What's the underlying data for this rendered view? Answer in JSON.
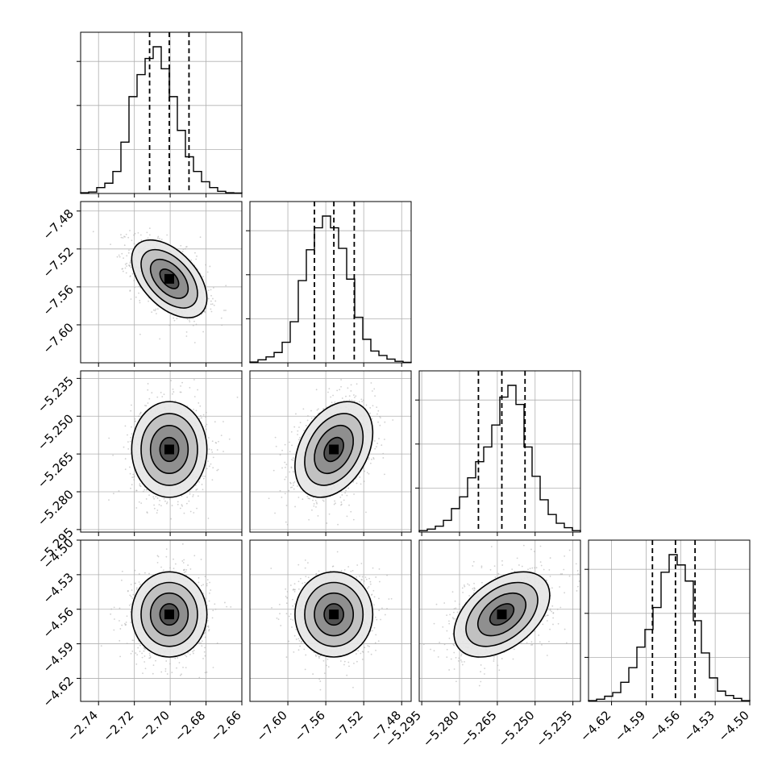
{
  "chart_data": {
    "type": "corner",
    "n_params": 4,
    "params": [
      {
        "range": [
          -2.75,
          -2.66
        ],
        "ticks": [
          -2.74,
          -2.72,
          -2.7,
          -2.68,
          -2.66
        ],
        "tick_labels": [
          "−2.74",
          "−2.72",
          "−2.70",
          "−2.68",
          "−2.66"
        ],
        "quantiles": [
          -2.7115,
          -2.7005,
          -2.6895
        ],
        "hist": [
          0.005,
          0.01,
          0.04,
          0.07,
          0.15,
          0.35,
          0.66,
          0.81,
          0.92,
          1.0,
          0.85,
          0.66,
          0.43,
          0.25,
          0.15,
          0.08,
          0.04,
          0.015,
          0.005,
          0.003
        ],
        "hist_yticks": [
          0.3,
          0.6,
          0.9
        ]
      },
      {
        "range": [
          -7.64,
          -7.47
        ],
        "ticks": [
          -7.6,
          -7.56,
          -7.52,
          -7.48
        ],
        "tick_labels": [
          "−7.60",
          "−7.56",
          "−7.52",
          "−7.48"
        ],
        "quantiles": [
          -7.572,
          -7.5515,
          -7.53
        ],
        "hist": [
          0.005,
          0.02,
          0.04,
          0.07,
          0.14,
          0.28,
          0.56,
          0.77,
          0.92,
          1.0,
          0.92,
          0.78,
          0.57,
          0.31,
          0.16,
          0.08,
          0.05,
          0.025,
          0.01,
          0.003
        ],
        "hist_yticks": [
          0.3,
          0.6,
          0.9
        ]
      },
      {
        "range": [
          -5.296,
          -5.232
        ],
        "ticks": [
          -5.295,
          -5.28,
          -5.265,
          -5.25,
          -5.235
        ],
        "tick_labels": [
          "−5.295",
          "−5.280",
          "−5.265",
          "−5.250",
          "−5.235"
        ],
        "quantiles": [
          -5.2725,
          -5.2632,
          -5.254
        ],
        "hist": [
          0.01,
          0.02,
          0.04,
          0.08,
          0.16,
          0.24,
          0.37,
          0.48,
          0.58,
          0.73,
          0.92,
          1.0,
          0.87,
          0.58,
          0.38,
          0.22,
          0.12,
          0.06,
          0.03,
          0.01
        ],
        "hist_yticks": [
          0.3,
          0.6,
          0.9
        ]
      },
      {
        "range": [
          -4.64,
          -4.5
        ],
        "ticks": [
          -4.62,
          -4.59,
          -4.56,
          -4.53,
          -4.5
        ],
        "tick_labels": [
          "−4.62",
          "−4.59",
          "−4.56",
          "−4.53",
          "−4.50"
        ],
        "quantiles": [
          -4.5845,
          -4.5645,
          -4.5475
        ],
        "hist": [
          0.005,
          0.015,
          0.035,
          0.06,
          0.13,
          0.23,
          0.37,
          0.49,
          0.64,
          0.88,
          1.0,
          0.93,
          0.82,
          0.55,
          0.33,
          0.16,
          0.07,
          0.04,
          0.02,
          0.005
        ],
        "hist_yticks": [
          0.3,
          0.6,
          0.9
        ]
      }
    ],
    "correlations": [
      [
        1,
        -0.5,
        0.0,
        0.0
      ],
      [
        -0.5,
        1,
        0.35,
        0.0
      ],
      [
        0.0,
        0.35,
        1,
        0.45
      ],
      [
        0.0,
        0.0,
        0.45,
        1
      ]
    ],
    "sigmas": [
      0.0105,
      0.0205,
      0.0095,
      0.0185
    ],
    "means": [
      -2.7005,
      -7.5515,
      -5.2632,
      -4.5645
    ],
    "contour_levels_sigma": [
      0.5,
      1.0,
      1.5,
      2.0
    ],
    "grid": true,
    "colors": {
      "hist": "#000000",
      "points": "#aaaaaa",
      "contour": "#000000",
      "grid": "#b0b0b0"
    }
  }
}
